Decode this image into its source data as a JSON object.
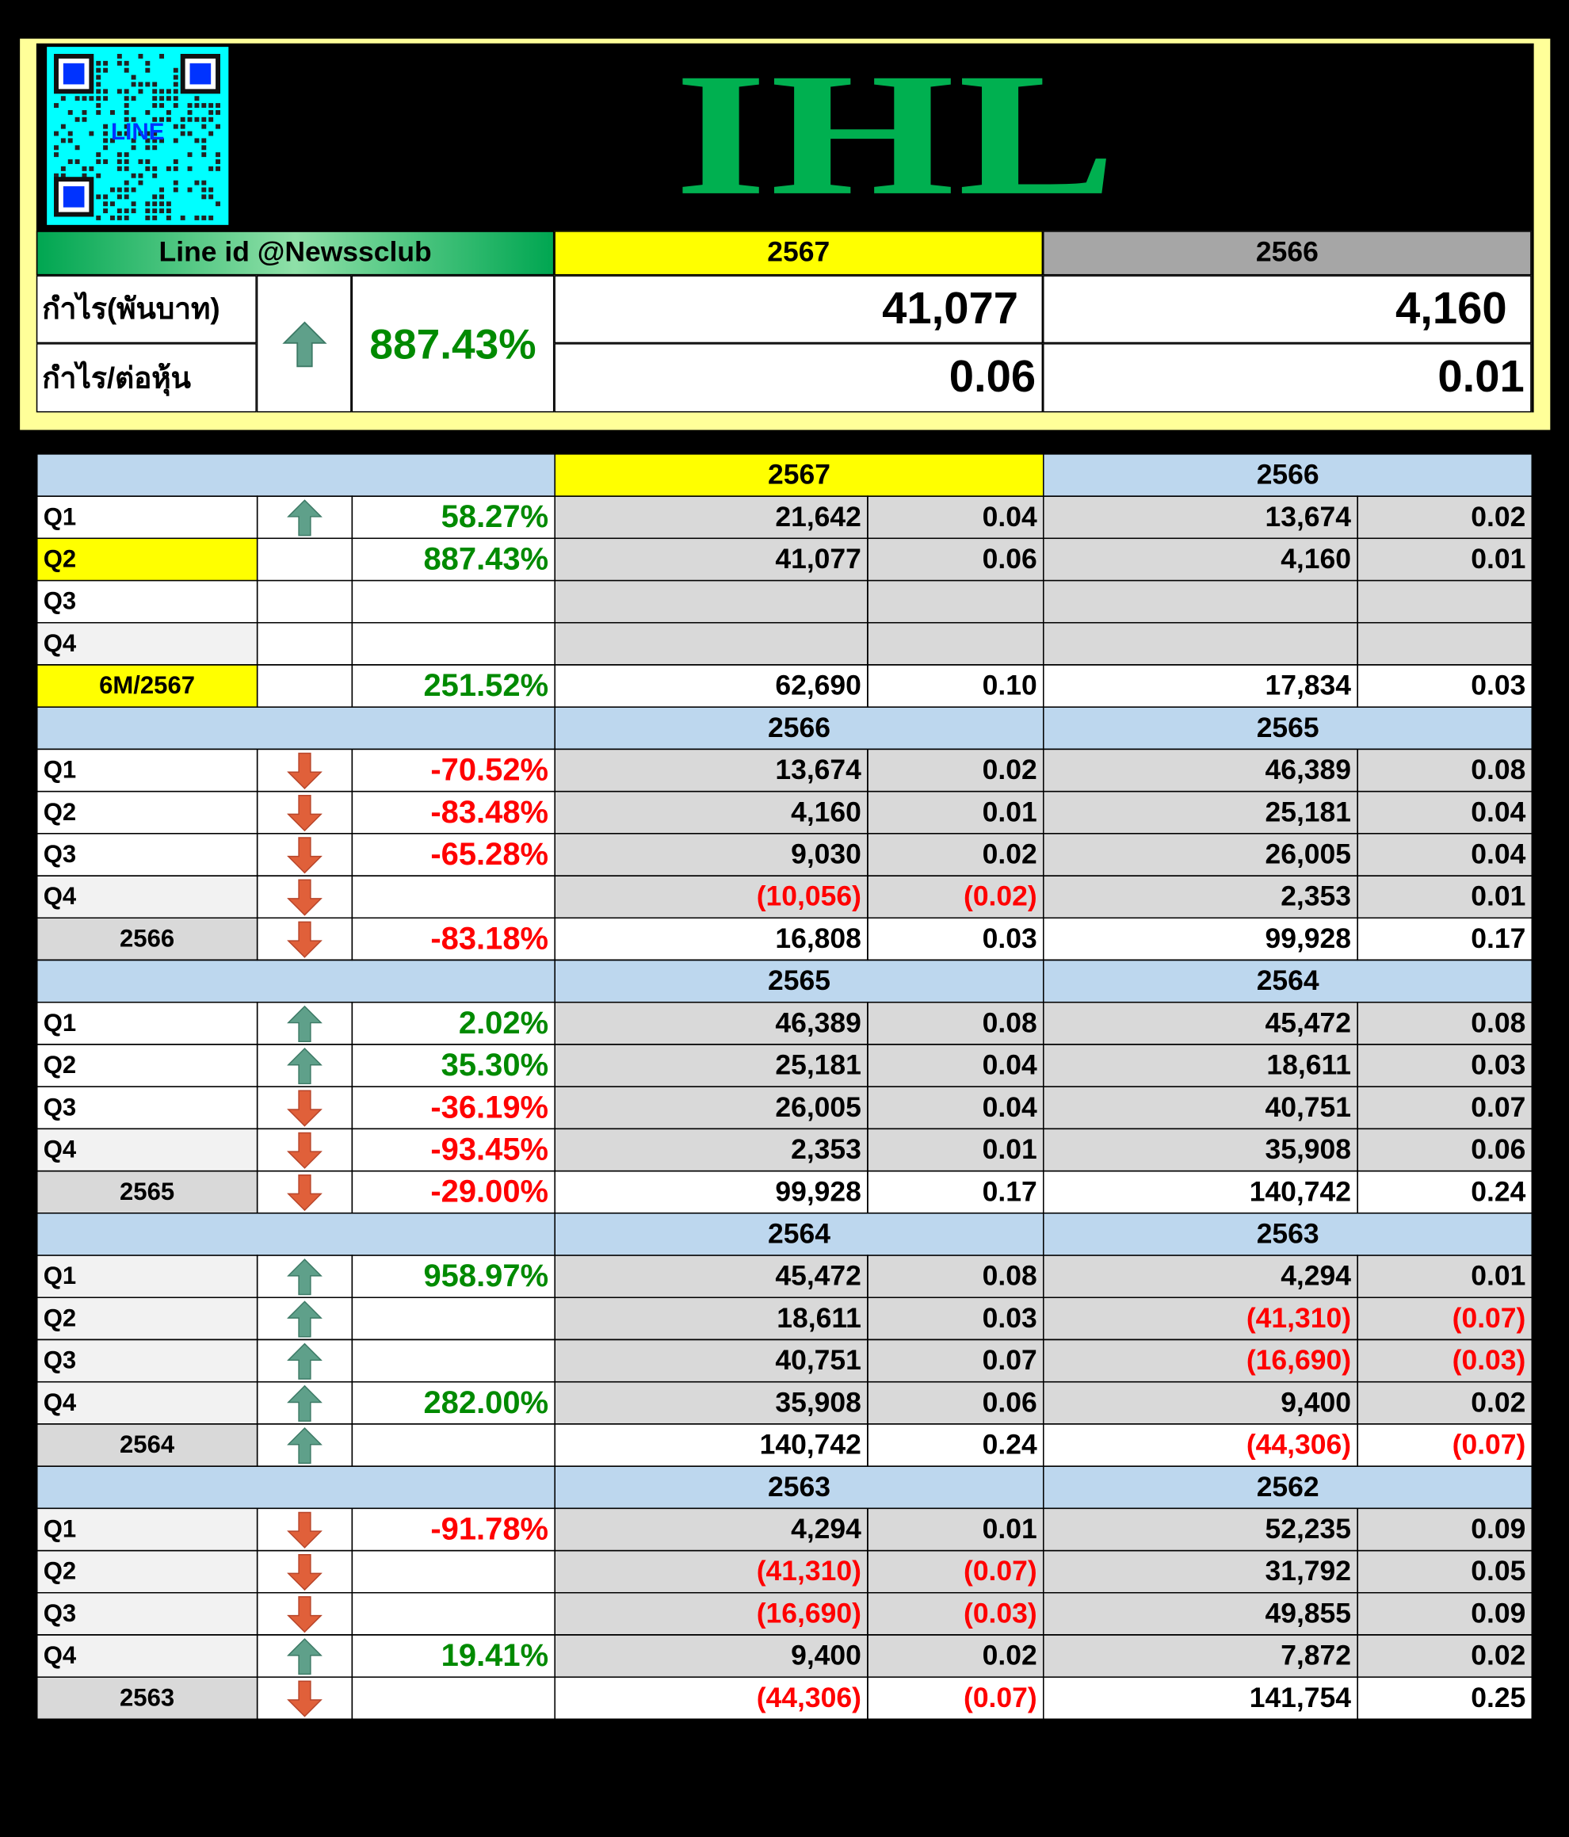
{
  "header": {
    "qr_label": "LINE",
    "title": "IHL",
    "line_id": "Line id @Newssclub",
    "years": [
      "2567",
      "2566"
    ],
    "year_colors": [
      "#ffff00",
      "#a6a6a6"
    ],
    "profit_label": "กำไร(พันบาท)",
    "eps_label": "กำไร/ต่อหุ้น",
    "arrow": "up",
    "change": "887.43%",
    "profits": [
      "41,077",
      "4,160"
    ],
    "eps": [
      "0.06",
      "0.01"
    ]
  },
  "sections": [
    {
      "years": [
        "2567",
        "2566"
      ],
      "year_colors": [
        "#ffff00",
        "#bdd7ee"
      ],
      "rows": [
        {
          "label": "Q1",
          "label_color": "#ffffff",
          "arrow": "up",
          "change": "58.27%",
          "values": [
            "21,642",
            "0.04",
            "13,674",
            "0.02"
          ]
        },
        {
          "label": "Q2",
          "label_color": "#ffff00",
          "arrow": null,
          "change": "887.43%",
          "values": [
            "41,077",
            "0.06",
            "4,160",
            "0.01"
          ]
        },
        {
          "label": "Q3",
          "label_color": "#ffffff",
          "arrow": null,
          "change": null,
          "values": [
            null,
            null,
            null,
            null
          ]
        },
        {
          "label": "Q4",
          "label_color": "#f2f2f2",
          "arrow": null,
          "change": null,
          "values": [
            null,
            null,
            null,
            null
          ]
        },
        {
          "label": "6M/2567",
          "label_color": "#ffff00",
          "total": true,
          "arrow": null,
          "change": "251.52%",
          "values": [
            "62,690",
            "0.10",
            "17,834",
            "0.03"
          ]
        }
      ]
    },
    {
      "years": [
        "2566",
        "2565"
      ],
      "year_colors": [
        "#bdd7ee",
        "#bdd7ee"
      ],
      "rows": [
        {
          "label": "Q1",
          "label_color": "#ffffff",
          "arrow": "down",
          "change": "-70.52%",
          "values": [
            "13,674",
            "0.02",
            "46,389",
            "0.08"
          ]
        },
        {
          "label": "Q2",
          "label_color": "#ffffff",
          "arrow": "down",
          "change": "-83.48%",
          "values": [
            "4,160",
            "0.01",
            "25,181",
            "0.04"
          ]
        },
        {
          "label": "Q3",
          "label_color": "#ffffff",
          "arrow": "down",
          "change": "-65.28%",
          "values": [
            "9,030",
            "0.02",
            "26,005",
            "0.04"
          ]
        },
        {
          "label": "Q4",
          "label_color": "#f2f2f2",
          "arrow": "down",
          "change": null,
          "values": [
            "(10,056)",
            "(0.02)",
            "2,353",
            "0.01"
          ]
        },
        {
          "label": "2566",
          "label_color": "#d9d9d9",
          "total": true,
          "arrow": "down",
          "change": "-83.18%",
          "values": [
            "16,808",
            "0.03",
            "99,928",
            "0.17"
          ]
        }
      ]
    },
    {
      "years": [
        "2565",
        "2564"
      ],
      "year_colors": [
        "#bdd7ee",
        "#bdd7ee"
      ],
      "rows": [
        {
          "label": "Q1",
          "label_color": "#ffffff",
          "arrow": "up",
          "change": "2.02%",
          "values": [
            "46,389",
            "0.08",
            "45,472",
            "0.08"
          ]
        },
        {
          "label": "Q2",
          "label_color": "#ffffff",
          "arrow": "up",
          "change": "35.30%",
          "values": [
            "25,181",
            "0.04",
            "18,611",
            "0.03"
          ]
        },
        {
          "label": "Q3",
          "label_color": "#ffffff",
          "arrow": "down",
          "change": "-36.19%",
          "values": [
            "26,005",
            "0.04",
            "40,751",
            "0.07"
          ]
        },
        {
          "label": "Q4",
          "label_color": "#f2f2f2",
          "arrow": "down",
          "change": "-93.45%",
          "values": [
            "2,353",
            "0.01",
            "35,908",
            "0.06"
          ]
        },
        {
          "label": "2565",
          "label_color": "#d9d9d9",
          "total": true,
          "arrow": "down",
          "change": "-29.00%",
          "values": [
            "99,928",
            "0.17",
            "140,742",
            "0.24"
          ]
        }
      ]
    },
    {
      "years": [
        "2564",
        "2563"
      ],
      "year_colors": [
        "#bdd7ee",
        "#bdd7ee"
      ],
      "rows": [
        {
          "label": "Q1",
          "label_color": "#f2f2f2",
          "arrow": "up",
          "change": "958.97%",
          "values": [
            "45,472",
            "0.08",
            "4,294",
            "0.01"
          ]
        },
        {
          "label": "Q2",
          "label_color": "#f2f2f2",
          "arrow": "up",
          "change": null,
          "values": [
            "18,611",
            "0.03",
            "(41,310)",
            "(0.07)"
          ]
        },
        {
          "label": "Q3",
          "label_color": "#f2f2f2",
          "arrow": "up",
          "change": null,
          "values": [
            "40,751",
            "0.07",
            "(16,690)",
            "(0.03)"
          ]
        },
        {
          "label": "Q4",
          "label_color": "#f2f2f2",
          "arrow": "up",
          "change": "282.00%",
          "values": [
            "35,908",
            "0.06",
            "9,400",
            "0.02"
          ]
        },
        {
          "label": "2564",
          "label_color": "#d9d9d9",
          "total": true,
          "arrow": "up",
          "change": null,
          "values": [
            "140,742",
            "0.24",
            "(44,306)",
            "(0.07)"
          ]
        }
      ]
    },
    {
      "years": [
        "2563",
        "2562"
      ],
      "year_colors": [
        "#bdd7ee",
        "#bdd7ee"
      ],
      "rows": [
        {
          "label": "Q1",
          "label_color": "#f2f2f2",
          "arrow": "down",
          "change": "-91.78%",
          "values": [
            "4,294",
            "0.01",
            "52,235",
            "0.09"
          ]
        },
        {
          "label": "Q2",
          "label_color": "#f2f2f2",
          "arrow": "down",
          "change": null,
          "values": [
            "(41,310)",
            "(0.07)",
            "31,792",
            "0.05"
          ]
        },
        {
          "label": "Q3",
          "label_color": "#f2f2f2",
          "arrow": "down",
          "change": null,
          "values": [
            "(16,690)",
            "(0.03)",
            "49,855",
            "0.09"
          ]
        },
        {
          "label": "Q4",
          "label_color": "#f2f2f2",
          "arrow": "up",
          "change": "19.41%",
          "values": [
            "9,400",
            "0.02",
            "7,872",
            "0.02"
          ]
        },
        {
          "label": "2563",
          "label_color": "#d9d9d9",
          "total": true,
          "arrow": "down",
          "change": null,
          "values": [
            "(44,306)",
            "(0.07)",
            "141,754",
            "0.25"
          ]
        }
      ]
    }
  ]
}
